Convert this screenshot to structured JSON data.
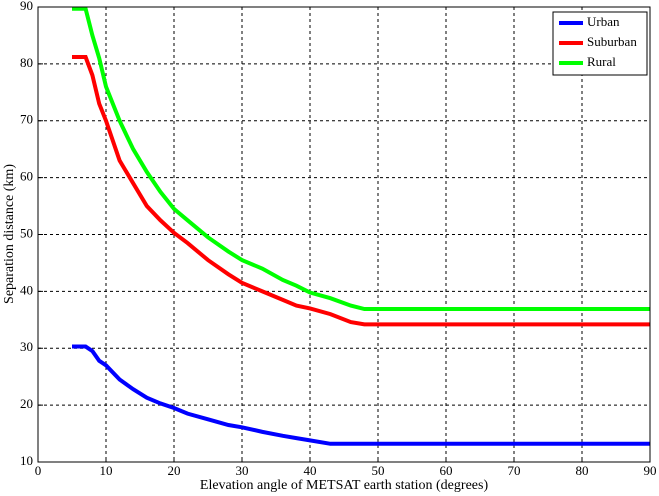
{
  "chart_data": {
    "type": "line",
    "x_label": "Elevation angle of METSAT earth station (degrees)",
    "y_label": "Separation distance (km)",
    "x": [
      5,
      7,
      8,
      9,
      10,
      12,
      14,
      16,
      18,
      20,
      22,
      25,
      28,
      30,
      33,
      36,
      38,
      40,
      43,
      46,
      48,
      90
    ],
    "series": [
      {
        "name": "Urban",
        "color": "#0000ff",
        "values": [
          30.3,
          30.3,
          29.5,
          27.8,
          27,
          24.5,
          22.8,
          21.3,
          20.3,
          19.5,
          18.5,
          17.5,
          16.5,
          16.1,
          15.3,
          14.6,
          14.2,
          13.8,
          13.2,
          13.2,
          13.2,
          13.2
        ]
      },
      {
        "name": "Suburban",
        "color": "#ff0000",
        "values": [
          81.2,
          81.2,
          78,
          73,
          70,
          63,
          59,
          55,
          52.5,
          50.3,
          48.5,
          45.5,
          43,
          41.5,
          40,
          38.5,
          37.5,
          37,
          36,
          34.6,
          34.2,
          34.2
        ]
      },
      {
        "name": "Rural",
        "color": "#00ff00",
        "values": [
          89.7,
          89.7,
          85,
          81,
          76,
          70,
          65,
          61,
          57.5,
          54.5,
          52.5,
          49.5,
          47,
          45.5,
          44,
          42,
          41,
          39.8,
          38.8,
          37.5,
          36.9,
          36.9
        ]
      }
    ],
    "xlim": [
      0,
      90
    ],
    "xticks": [
      0,
      10,
      20,
      30,
      40,
      50,
      60,
      70,
      80,
      90
    ],
    "ylim": [
      10,
      90
    ],
    "yticks": [
      10,
      20,
      30,
      40,
      50,
      60,
      70,
      80,
      90
    ],
    "grid": true,
    "legend": "upper right"
  }
}
